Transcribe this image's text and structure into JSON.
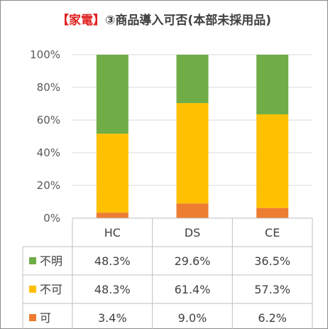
{
  "title": {
    "prefix": "【家電】",
    "main": "③商品導入可否(本部未採用品)"
  },
  "chart_data": {
    "type": "bar",
    "stacked": true,
    "percent": true,
    "categories": [
      "HC",
      "DS",
      "CE"
    ],
    "yticks": [
      "0%",
      "20%",
      "40%",
      "60%",
      "80%",
      "100%"
    ],
    "ylim": [
      0,
      100
    ],
    "grid": true,
    "series": [
      {
        "name": "可",
        "color": "#ed7d31",
        "values": [
          3.4,
          9.0,
          6.2
        ],
        "labels": [
          "3.4%",
          "9.0%",
          "6.2%"
        ]
      },
      {
        "name": "不可",
        "color": "#ffc000",
        "values": [
          48.3,
          61.4,
          57.3
        ],
        "labels": [
          "48.3%",
          "61.4%",
          "57.3%"
        ]
      },
      {
        "name": "不明",
        "color": "#70ad47",
        "values": [
          48.3,
          29.6,
          36.5
        ],
        "labels": [
          "48.3%",
          "29.6%",
          "36.5%"
        ]
      }
    ],
    "table_order": [
      "不明",
      "不可",
      "可"
    ]
  }
}
